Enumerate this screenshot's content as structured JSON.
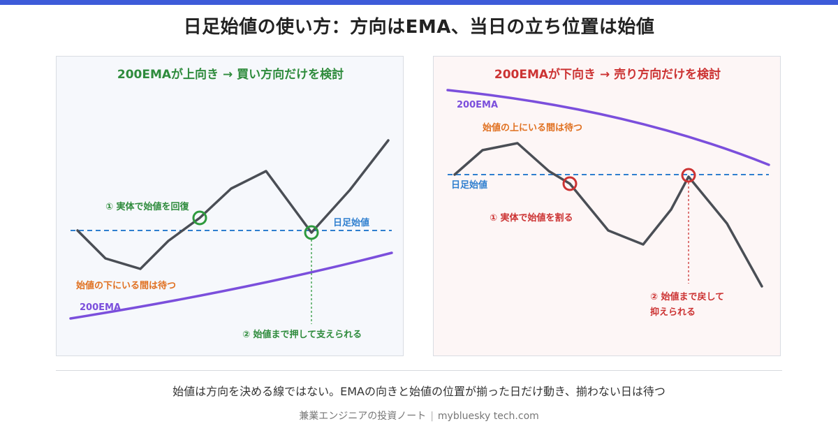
{
  "header": {
    "accent_color": "#3d5bd9",
    "title": "日足始値の使い方：方向はEMA、当日の立ち位置は始値"
  },
  "panels": {
    "uptrend": {
      "heading": "200EMAが上向き → 買い方向だけを検討",
      "heading_color": "#2e8b3c",
      "open_line_label": "日足始値",
      "ema_label": "200EMA",
      "wait_note": "始値の下にいる間は待つ",
      "step1": "① 実体で始値を回復",
      "step2": "② 始値まで押して支えられる",
      "colors": {
        "price": "#4a4e55",
        "open_line": "#2f7fcf",
        "ema": "#7b4fdc",
        "marker": "#2e9a3e",
        "note": "#e07020"
      }
    },
    "downtrend": {
      "heading": "200EMAが下向き → 売り方向だけを検討",
      "heading_color": "#cc3333",
      "open_line_label": "日足始値",
      "ema_label": "200EMA",
      "wait_note": "始値の上にいる間は待つ",
      "step1": "① 実体で始値を割る",
      "step2_line1": "② 始値まで戻して",
      "step2_line2": "抑えられる",
      "colors": {
        "price": "#4a4e55",
        "open_line": "#2f7fcf",
        "ema": "#7b4fdc",
        "marker": "#cc3333",
        "note": "#e07020"
      }
    }
  },
  "summary": "始値は方向を決める線ではない。EMAの向きと始値の位置が揃った日だけ動き、揃わない日は待つ",
  "footer": {
    "brand": "兼業エンジニアの投資ノート",
    "separator": "|",
    "site": "mybluesky tech.com"
  }
}
